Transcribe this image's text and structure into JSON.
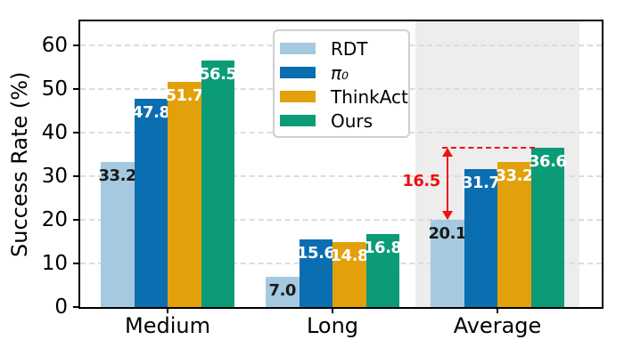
{
  "chart_data": {
    "type": "bar",
    "title": "",
    "ylabel": "Success Rate (%)",
    "categories": [
      "Medium",
      "Long",
      "Average"
    ],
    "series": [
      {
        "name": "RDT",
        "color": "#a5c9e1",
        "values": [
          33.2,
          7.0,
          20.1
        ],
        "value_label_color": "#1a1a1a",
        "italic": false
      },
      {
        "name": "π₀",
        "color": "#0a6eb0",
        "values": [
          47.8,
          15.6,
          31.7
        ],
        "value_label_color": "#ffffff",
        "italic": true
      },
      {
        "name": "ThinkAct",
        "color": "#e2a00a",
        "values": [
          51.7,
          14.8,
          33.2
        ],
        "value_label_color": "#ffffff",
        "italic": false
      },
      {
        "name": "Ours",
        "color": "#0b9b77",
        "values": [
          56.5,
          16.8,
          36.6
        ],
        "value_label_color": "#ffffff",
        "italic": false
      }
    ],
    "yticks": [
      0,
      10,
      20,
      30,
      40,
      50,
      60
    ],
    "ylim": [
      0,
      65.5
    ],
    "grid": "horizontal-dashed",
    "gridline_color": "#dcdcdc",
    "legend_position": "top-center",
    "highlight_band": {
      "category": "Average",
      "color": "#ededed"
    },
    "annotation": {
      "text": "16.5",
      "color": "#ee1111",
      "category": "Average",
      "from_series": "RDT",
      "from_value": 20.1,
      "to_series": "Ours",
      "to_value": 36.6,
      "style": "double-arrow-with-dashed-reference-line"
    }
  }
}
